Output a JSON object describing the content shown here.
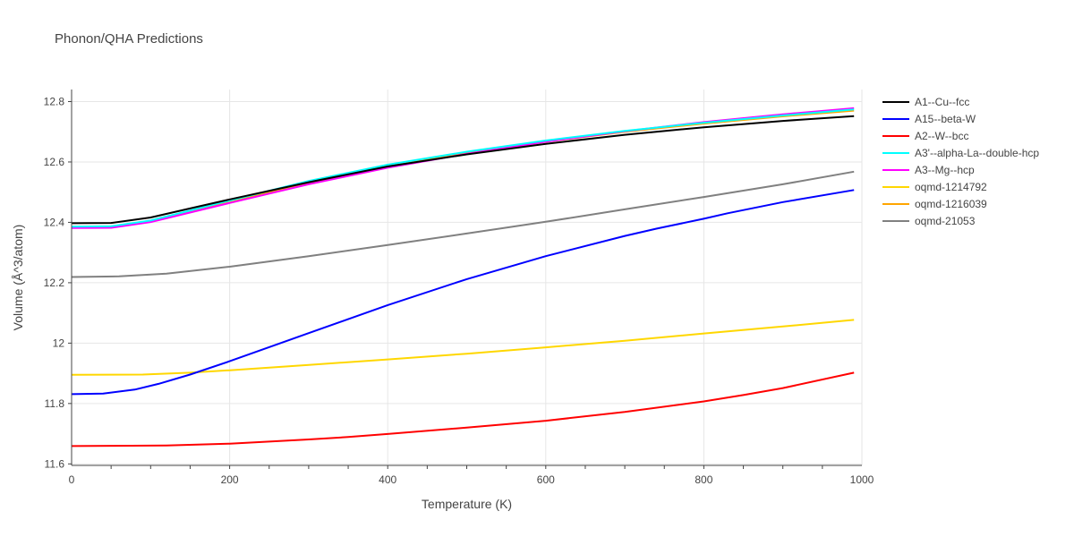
{
  "chart_data": {
    "type": "line",
    "title": "Phonon/QHA Predictions",
    "xlabel": "Temperature (K)",
    "ylabel": "Volume (Å^3/atom)",
    "xlim": [
      0,
      1000
    ],
    "ylim": [
      11.595,
      12.84
    ],
    "xticks": [
      0,
      200,
      400,
      600,
      800,
      1000
    ],
    "xtick_labels": [
      "0",
      "200",
      "400",
      "600",
      "800",
      "1000"
    ],
    "yticks": [
      11.6,
      11.8,
      12.0,
      12.2,
      12.4,
      12.6,
      12.8
    ],
    "ytick_labels": [
      "11.6",
      "11.8",
      "12",
      "12.2",
      "12.4",
      "12.6",
      "12.8"
    ],
    "grid": true,
    "legend_position": "right",
    "series": [
      {
        "name": "A1--Cu--fcc",
        "color": "#000000",
        "x": [
          0,
          50,
          100,
          150,
          200,
          300,
          400,
          500,
          600,
          700,
          800,
          900,
          990
        ],
        "y": [
          12.397,
          12.398,
          12.416,
          12.446,
          12.476,
          12.533,
          12.585,
          12.625,
          12.66,
          12.69,
          12.715,
          12.736,
          12.752
        ]
      },
      {
        "name": "A15--beta-W",
        "color": "#0000ff",
        "x": [
          0,
          40,
          80,
          110,
          150,
          200,
          300,
          400,
          500,
          600,
          700,
          740,
          800,
          830,
          900,
          990
        ],
        "y": [
          11.831,
          11.833,
          11.846,
          11.865,
          11.896,
          11.94,
          12.033,
          12.126,
          12.212,
          12.288,
          12.355,
          12.379,
          12.412,
          12.43,
          12.467,
          12.507
        ]
      },
      {
        "name": "A2--W--bcc",
        "color": "#ff0000",
        "x": [
          0,
          50,
          120,
          200,
          300,
          350,
          400,
          500,
          600,
          700,
          800,
          850,
          900,
          990
        ],
        "y": [
          11.659,
          11.66,
          11.661,
          11.667,
          11.681,
          11.689,
          11.699,
          11.72,
          11.743,
          11.772,
          11.807,
          11.828,
          11.851,
          11.902
        ]
      },
      {
        "name": "A3'--alpha-La--double-hcp",
        "color": "#00ffff",
        "x": [
          0,
          50,
          100,
          200,
          300,
          400,
          500,
          600,
          700,
          800,
          900,
          990
        ],
        "y": [
          12.386,
          12.387,
          12.406,
          12.472,
          12.537,
          12.591,
          12.634,
          12.671,
          12.703,
          12.73,
          12.754,
          12.774
        ]
      },
      {
        "name": "A3--Mg--hcp",
        "color": "#ff00ff",
        "x": [
          0,
          50,
          100,
          200,
          300,
          400,
          500,
          600,
          700,
          800,
          900,
          990
        ],
        "y": [
          12.381,
          12.382,
          12.401,
          12.464,
          12.526,
          12.581,
          12.627,
          12.667,
          12.702,
          12.732,
          12.758,
          12.778
        ]
      },
      {
        "name": "oqmd-1214792",
        "color": "#ffd700",
        "x": [
          0,
          90,
          150,
          200,
          300,
          400,
          500,
          600,
          700,
          800,
          900,
          990
        ],
        "y": [
          11.895,
          11.896,
          11.902,
          11.91,
          11.928,
          11.946,
          11.965,
          11.986,
          12.008,
          12.032,
          12.055,
          12.077
        ]
      },
      {
        "name": "oqmd-1216039",
        "color": "#ffa500",
        "x": [
          0,
          50,
          100,
          200,
          300,
          400,
          500,
          600,
          700,
          800,
          900,
          990
        ],
        "y": [
          12.384,
          12.385,
          12.404,
          12.468,
          12.531,
          12.585,
          12.629,
          12.667,
          12.7,
          12.727,
          12.751,
          12.77
        ]
      },
      {
        "name": "oqmd-21053",
        "color": "#808080",
        "x": [
          0,
          60,
          120,
          200,
          300,
          400,
          500,
          600,
          700,
          800,
          900,
          990
        ],
        "y": [
          12.219,
          12.221,
          12.23,
          12.253,
          12.288,
          12.325,
          12.363,
          12.402,
          12.443,
          12.484,
          12.526,
          12.568
        ]
      }
    ]
  }
}
